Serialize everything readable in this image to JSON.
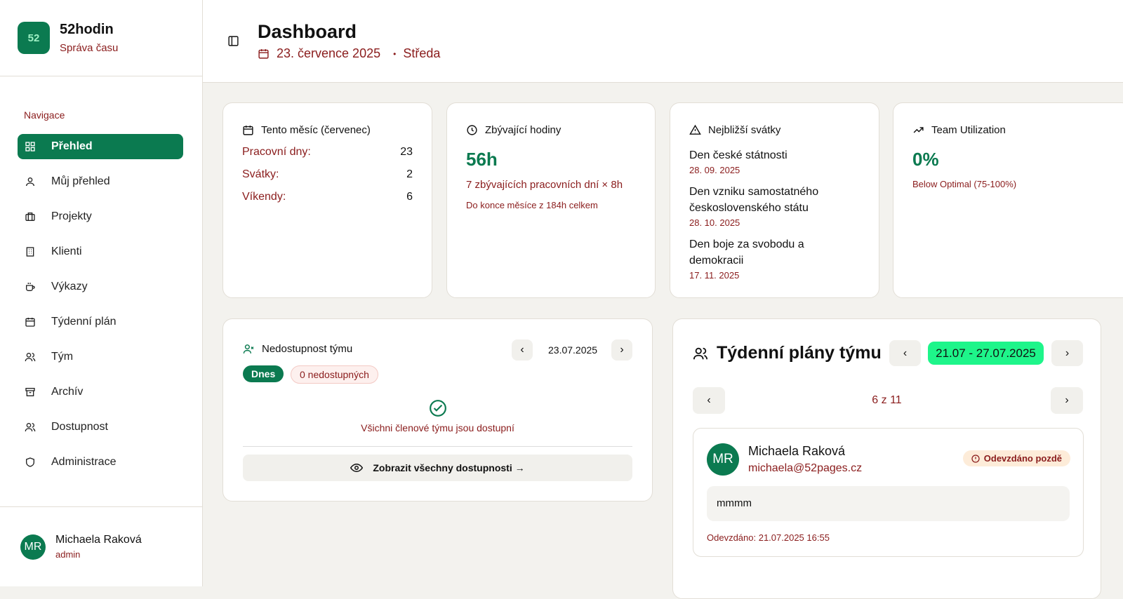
{
  "brand": {
    "name": "52hodin",
    "subtitle": "Správa času",
    "logo_text": "52"
  },
  "sidebar": {
    "section_label": "Navigace",
    "items": [
      {
        "label": "Přehled",
        "icon": "grid-icon",
        "active": true
      },
      {
        "label": "Můj přehled",
        "icon": "user-icon"
      },
      {
        "label": "Projekty",
        "icon": "briefcase-icon"
      },
      {
        "label": "Klienti",
        "icon": "building-icon"
      },
      {
        "label": "Výkazy",
        "icon": "coffee-icon"
      },
      {
        "label": "Týdenní plán",
        "icon": "calendar-icon"
      },
      {
        "label": "Tým",
        "icon": "users-icon"
      },
      {
        "label": "Archív",
        "icon": "archive-icon"
      },
      {
        "label": "Dostupnost",
        "icon": "users-icon"
      },
      {
        "label": "Administrace",
        "icon": "shield-icon"
      }
    ],
    "user": {
      "initials": "MR",
      "name": "Michaela Raková",
      "role": "admin"
    }
  },
  "header": {
    "title": "Dashboard",
    "date": "23. července 2025",
    "separator": "•",
    "weekday": "Středa"
  },
  "cards": {
    "month": {
      "title": "Tento měsíc (červenec)",
      "rows": [
        {
          "label": "Pracovní dny:",
          "value": "23"
        },
        {
          "label": "Svátky:",
          "value": "2"
        },
        {
          "label": "Víkendy:",
          "value": "6"
        }
      ]
    },
    "remaining": {
      "title": "Zbývající hodiny",
      "value": "56h",
      "detail": "7 zbývajících pracovních dní × 8h",
      "note": "Do konce měsíce z 184h celkem"
    },
    "holidays": {
      "title": "Nejbližší svátky",
      "items": [
        {
          "name": "Den české státnosti",
          "date": "28. 09. 2025"
        },
        {
          "name": "Den vzniku samostatného československého státu",
          "date": "28. 10. 2025"
        },
        {
          "name": "Den boje za svobodu a demokracii",
          "date": "17. 11. 2025"
        }
      ]
    },
    "utilization": {
      "title": "Team Utilization",
      "value": "0%",
      "note": "Below Optimal (75-100%)"
    }
  },
  "unavailability": {
    "title": "Nedostupnost týmu",
    "date": "23.07.2025",
    "today": "Dnes",
    "count": "0 nedostupných",
    "message": "Všichni členové týmu jsou dostupní",
    "show_all": "Zobrazit všechny dostupnosti →"
  },
  "weekly": {
    "title": "Týdenní plány týmu",
    "range": "21.07 - 27.07.2025",
    "pager": "6 z 11",
    "plan": {
      "initials": "MR",
      "name": "Michaela Raková",
      "email": "michaela@52pages.cz",
      "status": "Odevzdáno pozdě",
      "content": "mmmm",
      "submitted": "Odevzdáno: 21.07.2025 16:55"
    }
  },
  "colors": {
    "accent": "#0b7a50",
    "text_red": "#8a1c1c",
    "range_bg": "#1ef58a",
    "late_bg": "#fdecd9"
  }
}
